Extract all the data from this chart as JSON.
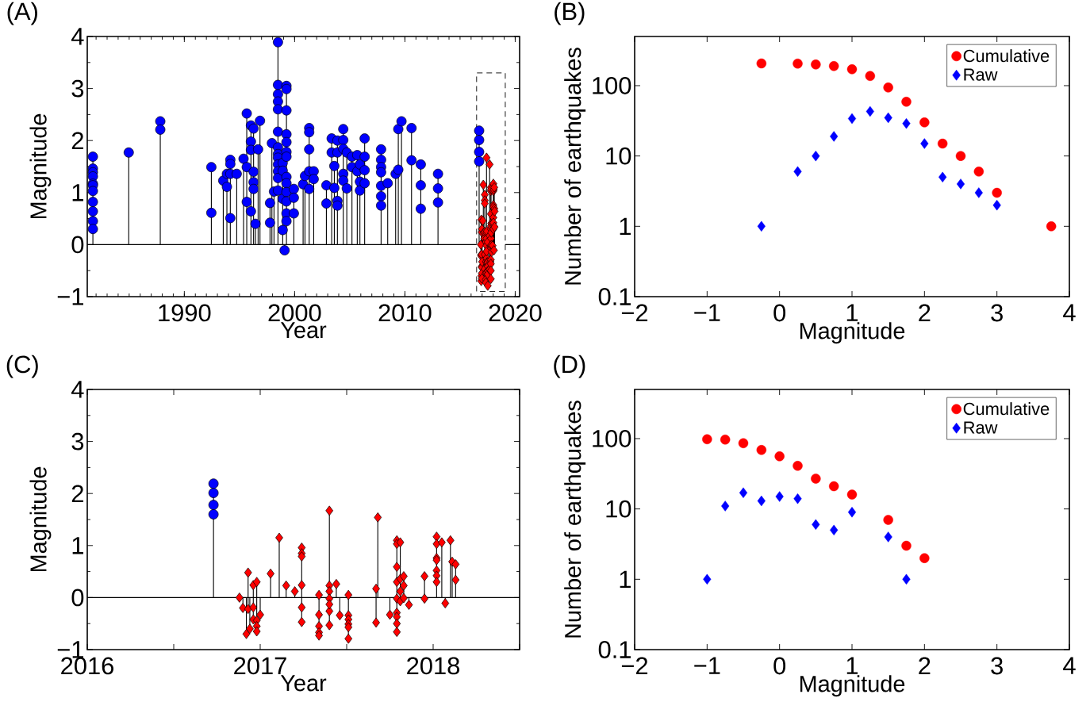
{
  "chart_data": [
    {
      "type": "lollipop",
      "title": "(A)",
      "xlabel": "Year",
      "ylabel": "Magnitude",
      "xlim": [
        1981.2,
        2020.4
      ],
      "ylim": [
        -1,
        4
      ],
      "xticks": [
        1990,
        2000,
        2010,
        2020
      ],
      "yticks": [
        {
          "value": -1,
          "label": "−1"
        },
        0,
        1,
        2,
        3,
        4
      ],
      "ref_lines": [
        {
          "axis": "y",
          "value": 0
        }
      ],
      "bands": [
        {
          "axis": "x",
          "from": 2016.5,
          "to": 2019.1,
          "color": "#ffffff"
        }
      ],
      "series": [
        {
          "color": "#0000ff",
          "marker": "circle",
          "x": [
            1981.71,
            1981.71,
            1981.71,
            1981.71,
            1981.71,
            1981.71,
            1981.71,
            1981.71,
            1981.71,
            1981.71,
            1981.71,
            1984.96,
            1987.82,
            1987.82,
            1992.45,
            1992.45,
            1993.53,
            1993.86,
            1993.86,
            1994.17,
            1994.17,
            1994.17,
            1994.17,
            1994.75,
            1995.37,
            1995.66,
            1995.66,
            1995.66,
            1996.04,
            1996.04,
            1996.04,
            1996.04,
            1996.28,
            1996.28,
            1996.28,
            1996.28,
            1996.45,
            1996.69,
            1996.86,
            1997.77,
            1997.77,
            1997.94,
            1998.13,
            1998.49,
            1998.49,
            1998.49,
            1998.49,
            1998.49,
            1998.49,
            1998.49,
            1998.49,
            1998.49,
            1998.49,
            1998.49,
            1998.49,
            1998.49,
            1998.92,
            1998.92,
            1998.92,
            1998.92,
            1999.09,
            1999.26,
            1999.26,
            1999.26,
            1999.26,
            1999.26,
            1999.26,
            1999.26,
            1999.26,
            1999.26,
            1999.26,
            1999.26,
            1999.26,
            1999.26,
            1999.93,
            1999.93,
            1999.93,
            2000.77,
            2000.94,
            2001.32,
            2001.32,
            2001.32,
            2001.32,
            2001.32,
            2001.73,
            2001.73,
            2002.88,
            2002.88,
            2003.36,
            2003.36,
            2003.6,
            2003.6,
            2003.88,
            2003.88,
            2003.88,
            2003.88,
            2004.41,
            2004.41,
            2004.41,
            2004.41,
            2004.41,
            2004.73,
            2004.73,
            2005.2,
            2005.2,
            2005.68,
            2005.68,
            2005.92,
            2005.92,
            2005.92,
            2006.35,
            2006.35,
            2006.35,
            2006.35,
            2007.84,
            2007.84,
            2007.84,
            2007.84,
            2007.84,
            2007.84,
            2007.84,
            2008.44,
            2009.16,
            2009.4,
            2009.4,
            2009.69,
            2010.6,
            2010.6,
            2011.44,
            2011.44,
            2011.44,
            2013.0,
            2013.0,
            2013.0,
            2016.73,
            2016.73,
            2016.73,
            2016.73
          ],
          "values": [
            1.69,
            1.46,
            1.39,
            1.31,
            1.17,
            1.14,
            1.03,
            0.82,
            0.64,
            0.45,
            0.3,
            1.77,
            2.37,
            2.21,
            1.49,
            0.61,
            1.23,
            1.36,
            1.11,
            1.63,
            1.55,
            1.36,
            0.51,
            1.36,
            1.65,
            2.52,
            1.49,
            0.82,
            2.29,
            1.98,
            1.82,
            0.64,
            2.23,
            1.4,
            1.2,
            1.07,
            0.4,
            1.83,
            2.38,
            0.8,
            0.42,
            1.95,
            1.02,
            3.89,
            3.07,
            2.89,
            2.75,
            2.6,
            2.17,
            1.87,
            1.74,
            1.67,
            1.54,
            1.41,
            1.28,
            1.04,
            1.57,
            1.42,
            0.88,
            0.28,
            -0.11,
            3.05,
            2.99,
            2.58,
            2.12,
            1.97,
            1.78,
            1.69,
            1.3,
            1.18,
            1.01,
            0.83,
            0.6,
            0.45,
            1.07,
            0.9,
            0.6,
            1.16,
            1.32,
            2.24,
            2.16,
            1.83,
            1.41,
            1.07,
            1.41,
            1.26,
            1.14,
            0.79,
            2.04,
            1.77,
            1.51,
            1.09,
            2.0,
            1.77,
            0.84,
            0.75,
            2.22,
            2.01,
            1.84,
            1.36,
            1.23,
            1.77,
            1.08,
            1.69,
            1.49,
            1.72,
            1.41,
            1.54,
            1.21,
            1.04,
            2.04,
            1.69,
            1.43,
            1.18,
            1.83,
            1.63,
            1.49,
            1.39,
            1.13,
            0.93,
            0.75,
            1.18,
            1.36,
            2.22,
            1.44,
            2.37,
            2.24,
            1.62,
            1.54,
            1.14,
            0.69,
            1.36,
            1.08,
            0.81,
            2.19,
            2.01,
            1.78,
            1.6
          ]
        },
        {
          "color": "#ff0000",
          "marker": "diamond",
          "x": [
            2016.88,
            2016.9,
            2016.92,
            2016.93,
            2016.93,
            2016.94,
            2016.96,
            2016.96,
            2016.96,
            2016.98,
            2016.98,
            2016.98,
            2016.98,
            2017.0,
            2017.06,
            2017.11,
            2017.15,
            2017.2,
            2017.24,
            2017.24,
            2017.24,
            2017.24,
            2017.24,
            2017.24,
            2017.34,
            2017.34,
            2017.34,
            2017.34,
            2017.34,
            2017.4,
            2017.4,
            2017.4,
            2017.4,
            2017.4,
            2017.4,
            2017.4,
            2017.44,
            2017.46,
            2017.51,
            2017.51,
            2017.51,
            2017.51,
            2017.51,
            2017.51,
            2017.67,
            2017.67,
            2017.68,
            2017.75,
            2017.79,
            2017.79,
            2017.79,
            2017.79,
            2017.79,
            2017.79,
            2017.79,
            2017.79,
            2017.79,
            2017.81,
            2017.81,
            2017.81,
            2017.81,
            2017.83,
            2017.83,
            2017.83,
            2017.86,
            2017.95,
            2017.95,
            2018.02,
            2018.02,
            2018.02,
            2018.02,
            2018.02,
            2018.02,
            2018.02,
            2018.05,
            2018.07,
            2018.1,
            2018.11,
            2018.13,
            2018.13
          ],
          "values": [
            0.0,
            -0.2,
            -0.7,
            0.48,
            -0.22,
            -0.6,
            0.24,
            -0.19,
            -0.42,
            0.3,
            -0.44,
            -0.55,
            -0.65,
            -0.33,
            0.46,
            1.15,
            0.23,
            0.12,
            0.96,
            0.85,
            0.79,
            0.24,
            -0.19,
            -0.47,
            0.05,
            -0.33,
            -0.55,
            -0.67,
            -0.73,
            1.67,
            0.23,
            0.12,
            -0.02,
            -0.26,
            -0.13,
            -0.53,
            0.26,
            -0.34,
            0.05,
            -0.34,
            -0.42,
            -0.51,
            -0.57,
            -0.79,
            0.17,
            -0.48,
            1.54,
            -0.33,
            1.1,
            1.03,
            0.59,
            0.3,
            -0.02,
            -0.29,
            -0.37,
            -0.5,
            -0.66,
            1.06,
            0.36,
            0.12,
            -0.07,
            0.41,
            0.23,
            -0.01,
            -0.14,
            0.41,
            -0.02,
            1.17,
            1.03,
            0.76,
            0.72,
            0.52,
            0.42,
            0.3,
            1.06,
            -0.11,
            1.1,
            0.69,
            0.64,
            0.34
          ]
        }
      ]
    },
    {
      "type": "scatter",
      "title": "(B)",
      "xlabel": "Magnitude",
      "ylabel": "Number of earthquakes",
      "log": true,
      "legend": "top right",
      "xlim": [
        -2,
        4
      ],
      "ylim": [
        0.1,
        500
      ],
      "xticks": [
        {
          "value": -2,
          "label": "−2"
        },
        {
          "value": -1,
          "label": "−1"
        },
        0,
        1,
        2,
        3,
        4
      ],
      "yticks": [
        0.1,
        1,
        10,
        100
      ],
      "x": [
        -0.25,
        0.25,
        0.5,
        0.75,
        1,
        1.25,
        1.5,
        1.75,
        2,
        2.25,
        2.5,
        2.75,
        3,
        3.75
      ],
      "series": [
        {
          "name": "Cumulative",
          "color": "#ff0000",
          "marker": "circle",
          "values": [
            207,
            206,
            200,
            190,
            171,
            137,
            94,
            59,
            30,
            15,
            10,
            6,
            3,
            1
          ]
        },
        {
          "name": "Raw",
          "color": "#0000ff",
          "marker": "diamond",
          "values": [
            1,
            6,
            10,
            19,
            34,
            43,
            35,
            29,
            15,
            5,
            4,
            3,
            2,
            null
          ]
        }
      ]
    },
    {
      "type": "lollipop",
      "title": "(C)",
      "xlabel": "Year",
      "ylabel": "Magnitude",
      "xlim": [
        2016,
        2018.5
      ],
      "ylim": [
        -1,
        4
      ],
      "xticks": [
        2016,
        {
          "value": 2016.5,
          "label": null
        },
        2017,
        {
          "value": 2017.5,
          "label": null
        },
        2018,
        {
          "value": 2018.5,
          "label": null
        }
      ],
      "yticks": [
        {
          "value": -1,
          "label": "−1"
        },
        0,
        1,
        2,
        3,
        4
      ],
      "ref_lines": [
        {
          "axis": "y",
          "value": 0
        }
      ],
      "series": [
        {
          "color": "#0000ff",
          "marker": "circle",
          "x": [
            2016.73,
            2016.73,
            2016.73,
            2016.73
          ],
          "values": [
            2.19,
            2.01,
            1.78,
            1.6
          ]
        },
        {
          "color": "#ff0000",
          "marker": "diamond",
          "x": [
            2016.88,
            2016.9,
            2016.92,
            2016.93,
            2016.93,
            2016.94,
            2016.96,
            2016.96,
            2016.96,
            2016.98,
            2016.98,
            2016.98,
            2016.98,
            2017.0,
            2017.06,
            2017.11,
            2017.15,
            2017.2,
            2017.24,
            2017.24,
            2017.24,
            2017.24,
            2017.24,
            2017.24,
            2017.34,
            2017.34,
            2017.34,
            2017.34,
            2017.34,
            2017.4,
            2017.4,
            2017.4,
            2017.4,
            2017.4,
            2017.4,
            2017.4,
            2017.44,
            2017.46,
            2017.51,
            2017.51,
            2017.51,
            2017.51,
            2017.51,
            2017.51,
            2017.67,
            2017.67,
            2017.68,
            2017.75,
            2017.79,
            2017.79,
            2017.79,
            2017.79,
            2017.79,
            2017.79,
            2017.79,
            2017.79,
            2017.79,
            2017.81,
            2017.81,
            2017.81,
            2017.81,
            2017.83,
            2017.83,
            2017.83,
            2017.86,
            2017.95,
            2017.95,
            2018.02,
            2018.02,
            2018.02,
            2018.02,
            2018.02,
            2018.02,
            2018.02,
            2018.05,
            2018.07,
            2018.1,
            2018.11,
            2018.13,
            2018.13
          ],
          "values": [
            0.0,
            -0.2,
            -0.7,
            0.48,
            -0.22,
            -0.6,
            0.24,
            -0.19,
            -0.42,
            0.3,
            -0.44,
            -0.55,
            -0.65,
            -0.33,
            0.46,
            1.15,
            0.23,
            0.12,
            0.96,
            0.85,
            0.79,
            0.24,
            -0.19,
            -0.47,
            0.05,
            -0.33,
            -0.55,
            -0.67,
            -0.73,
            1.67,
            0.23,
            0.12,
            -0.02,
            -0.26,
            -0.13,
            -0.53,
            0.26,
            -0.34,
            0.05,
            -0.34,
            -0.42,
            -0.51,
            -0.57,
            -0.79,
            0.17,
            -0.48,
            1.54,
            -0.33,
            1.1,
            1.03,
            0.59,
            0.3,
            -0.02,
            -0.29,
            -0.37,
            -0.5,
            -0.66,
            1.06,
            0.36,
            0.12,
            -0.07,
            0.41,
            0.23,
            -0.01,
            -0.14,
            0.41,
            -0.02,
            1.17,
            1.03,
            0.76,
            0.72,
            0.52,
            0.42,
            0.3,
            1.06,
            -0.11,
            1.1,
            0.69,
            0.64,
            0.34
          ]
        }
      ]
    },
    {
      "type": "scatter",
      "title": "(D)",
      "xlabel": "Magnitude",
      "ylabel": "Number of earthquakes",
      "log": true,
      "legend": "top right",
      "xlim": [
        -2,
        4
      ],
      "ylim": [
        0.1,
        500
      ],
      "xticks": [
        {
          "value": -2,
          "label": "−2"
        },
        {
          "value": -1,
          "label": "−1"
        },
        0,
        1,
        2,
        3,
        4
      ],
      "yticks": [
        0.1,
        1,
        10,
        100
      ],
      "x": [
        -1,
        -0.75,
        -0.5,
        -0.25,
        0,
        0.25,
        0.5,
        0.75,
        1,
        1.5,
        1.75,
        2
      ],
      "series": [
        {
          "name": "Cumulative",
          "color": "#ff0000",
          "marker": "circle",
          "values": [
            98,
            97,
            86,
            69,
            56,
            41,
            27,
            21,
            16,
            7,
            3,
            2
          ]
        },
        {
          "name": "Raw",
          "color": "#0000ff",
          "marker": "diamond",
          "values": [
            1,
            11,
            17,
            13,
            15,
            14,
            6,
            5,
            9,
            4,
            1,
            null
          ]
        }
      ]
    }
  ]
}
